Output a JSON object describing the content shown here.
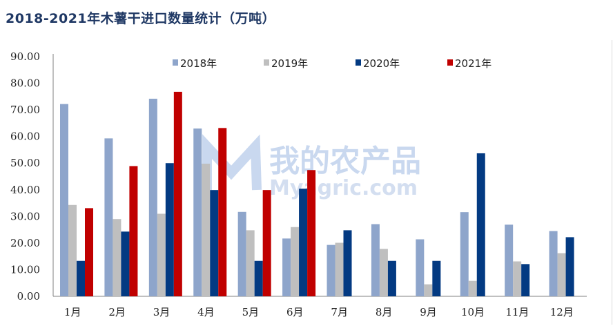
{
  "title": "2018-2021年木薯干进口数量统计（万吨）",
  "watermark": {
    "cn": "我的农产品",
    "en": "Myagric.com"
  },
  "chart_data": {
    "type": "bar",
    "title": "2018-2021年木薯干进口数量统计（万吨）",
    "categories": [
      "1月",
      "2月",
      "3月",
      "4月",
      "5月",
      "6月",
      "7月",
      "8月",
      "9月",
      "10月",
      "11月",
      "12月"
    ],
    "ylim": [
      0,
      90
    ],
    "yticks": [
      "0.00",
      "10.00",
      "20.00",
      "30.00",
      "40.00",
      "50.00",
      "60.00",
      "70.00",
      "80.00",
      "90.00"
    ],
    "grid": false,
    "legend_position": "top",
    "series": [
      {
        "name": "2018年",
        "color": "#8ea5cb",
        "values": [
          72.2,
          59.3,
          74.2,
          63.0,
          31.7,
          21.7,
          19.3,
          27.1,
          21.4,
          31.6,
          26.9,
          24.5
        ]
      },
      {
        "name": "2019年",
        "color": "#bfbfbf",
        "values": [
          34.3,
          29.0,
          31.0,
          49.8,
          24.8,
          26.0,
          20.1,
          17.8,
          4.5,
          5.8,
          13.1,
          16.2
        ]
      },
      {
        "name": "2020年",
        "color": "#033a82",
        "values": [
          13.3,
          24.3,
          50.0,
          39.9,
          13.3,
          40.4,
          24.8,
          13.3,
          13.3,
          53.7,
          12.1,
          22.2
        ]
      },
      {
        "name": "2021年",
        "color": "#c00000",
        "values": [
          33.1,
          48.9,
          76.8,
          63.2,
          39.9,
          47.4,
          null,
          null,
          null,
          null,
          null,
          null
        ]
      }
    ]
  }
}
